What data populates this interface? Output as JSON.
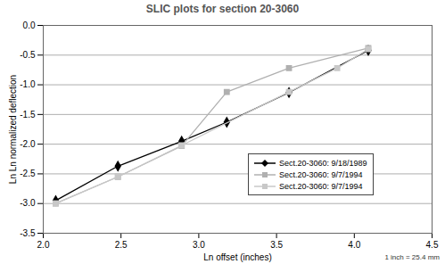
{
  "chart_data": {
    "type": "line",
    "title": "SLIC plots for section 20-3060",
    "x_label": "Ln offset (inches)",
    "y_label": "Ln Ln normalized deflection",
    "annotation": "1 inch = 25.4 mm",
    "xlim": [
      2.0,
      4.5
    ],
    "xticks": [
      {
        "value": 2.0,
        "label": "2.0"
      },
      {
        "value": 2.5,
        "label": "2.5"
      },
      {
        "value": 3.0,
        "label": "3.0"
      },
      {
        "value": 3.5,
        "label": "3.5"
      },
      {
        "value": 4.0,
        "label": "4.0"
      },
      {
        "value": 4.5,
        "label": "4.5"
      }
    ],
    "ylim": [
      -3.5,
      0.0
    ],
    "yticks": [
      {
        "value": -3.5,
        "label": "-3.5"
      },
      {
        "value": -3.0,
        "label": "-3.0"
      },
      {
        "value": -2.5,
        "label": "-2.5"
      },
      {
        "value": -2.0,
        "label": "-2.0"
      },
      {
        "value": -1.5,
        "label": "-1.5"
      },
      {
        "value": -1.0,
        "label": "-1.0"
      },
      {
        "value": -0.5,
        "label": "-0.5"
      },
      {
        "value": 0.0,
        "label": "0.0"
      }
    ],
    "grid": true,
    "legend": "bottom-right",
    "series": [
      {
        "name": "Sect.20-3060: 9/18/1989",
        "color": "#000000",
        "marker": "diamond",
        "x": [
          2.08,
          2.48,
          2.89,
          3.18,
          3.58,
          4.09
        ],
        "values": [
          -2.95,
          -2.37,
          -1.95,
          -1.63,
          -1.13,
          -0.42
        ]
      },
      {
        "name": "Sect.20-3060: 9/7/1994",
        "color": "#b0b0b0",
        "marker": "square",
        "x": [
          2.08,
          2.48,
          2.89,
          3.18,
          3.58,
          4.09
        ],
        "values": [
          -3.0,
          -2.55,
          -2.03,
          -1.12,
          -0.72,
          -0.38
        ]
      },
      {
        "name": "Sect.20-3060: 9/7/1994",
        "color": "#c8c8c8",
        "marker": "square",
        "x": [
          2.08,
          2.48,
          2.89,
          3.58,
          3.89,
          4.09
        ],
        "values": [
          -3.0,
          -2.55,
          -2.02,
          -1.12,
          -0.72,
          -0.4
        ]
      }
    ]
  }
}
